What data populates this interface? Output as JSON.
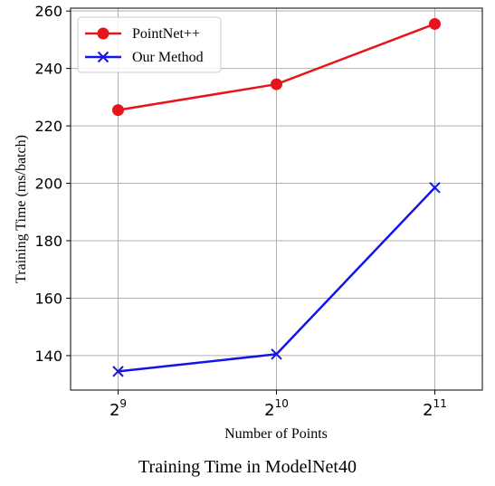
{
  "chart_data": {
    "type": "line",
    "x": [
      9,
      10,
      11
    ],
    "tick_labels": [
      {
        "base": "2",
        "exp": "9"
      },
      {
        "base": "2",
        "exp": "10"
      },
      {
        "base": "2",
        "exp": "11"
      }
    ],
    "series": [
      {
        "name": "PointNet++",
        "values": [
          225.5,
          234.5,
          255.5
        ],
        "color": "#e8141b",
        "marker": "circle"
      },
      {
        "name": "Our Method",
        "values": [
          134.5,
          140.5,
          198.5
        ],
        "color": "#1414e8",
        "marker": "x"
      }
    ],
    "xlabel": "Number of Points",
    "ylabel": "Training Time (ms/batch)",
    "ylim": [
      128,
      261
    ],
    "yticks": [
      140,
      160,
      180,
      200,
      220,
      240,
      260
    ],
    "xlim": [
      8.7,
      11.3
    ],
    "grid": true,
    "legend_position": "top-left"
  },
  "caption": "Training Time in ModelNet40"
}
